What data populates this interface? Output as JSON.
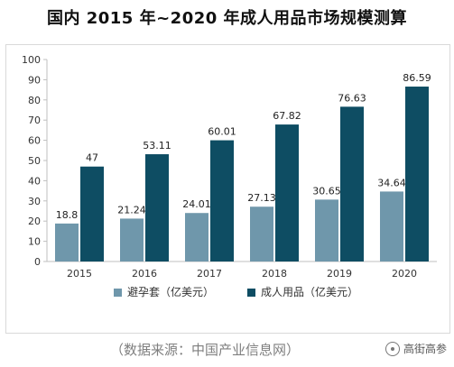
{
  "chart_data": {
    "type": "bar",
    "title": "国内 2015 年~2020 年成人用品市场规模测算",
    "categories": [
      "2015",
      "2016",
      "2017",
      "2018",
      "2019",
      "2020"
    ],
    "series": [
      {
        "name": "避孕套（亿美元）",
        "values": [
          18.8,
          21.24,
          24.01,
          27.13,
          30.65,
          34.64
        ],
        "labels": [
          "18.8",
          "21.24",
          "24.01",
          "27.13",
          "30.65",
          "34.64"
        ],
        "color": "#6f97ab"
      },
      {
        "name": "成人用品（亿美元）",
        "values": [
          47,
          53.11,
          60.01,
          67.82,
          76.63,
          86.59
        ],
        "labels": [
          "47",
          "53.11",
          "60.01",
          "67.82",
          "76.63",
          "86.59"
        ],
        "color": "#0e4d63"
      }
    ],
    "ylim": [
      0,
      100
    ],
    "yticks": [
      "0",
      "10",
      "20",
      "30",
      "40",
      "50",
      "60",
      "70",
      "80",
      "90",
      "100"
    ],
    "xlabel": "",
    "ylabel": "",
    "grid": false,
    "legend": "bottom"
  },
  "source_text": "（数据来源：中国产业信息网）",
  "watermark": {
    "text": "高街高参",
    "icon": "wechat-search-icon"
  }
}
